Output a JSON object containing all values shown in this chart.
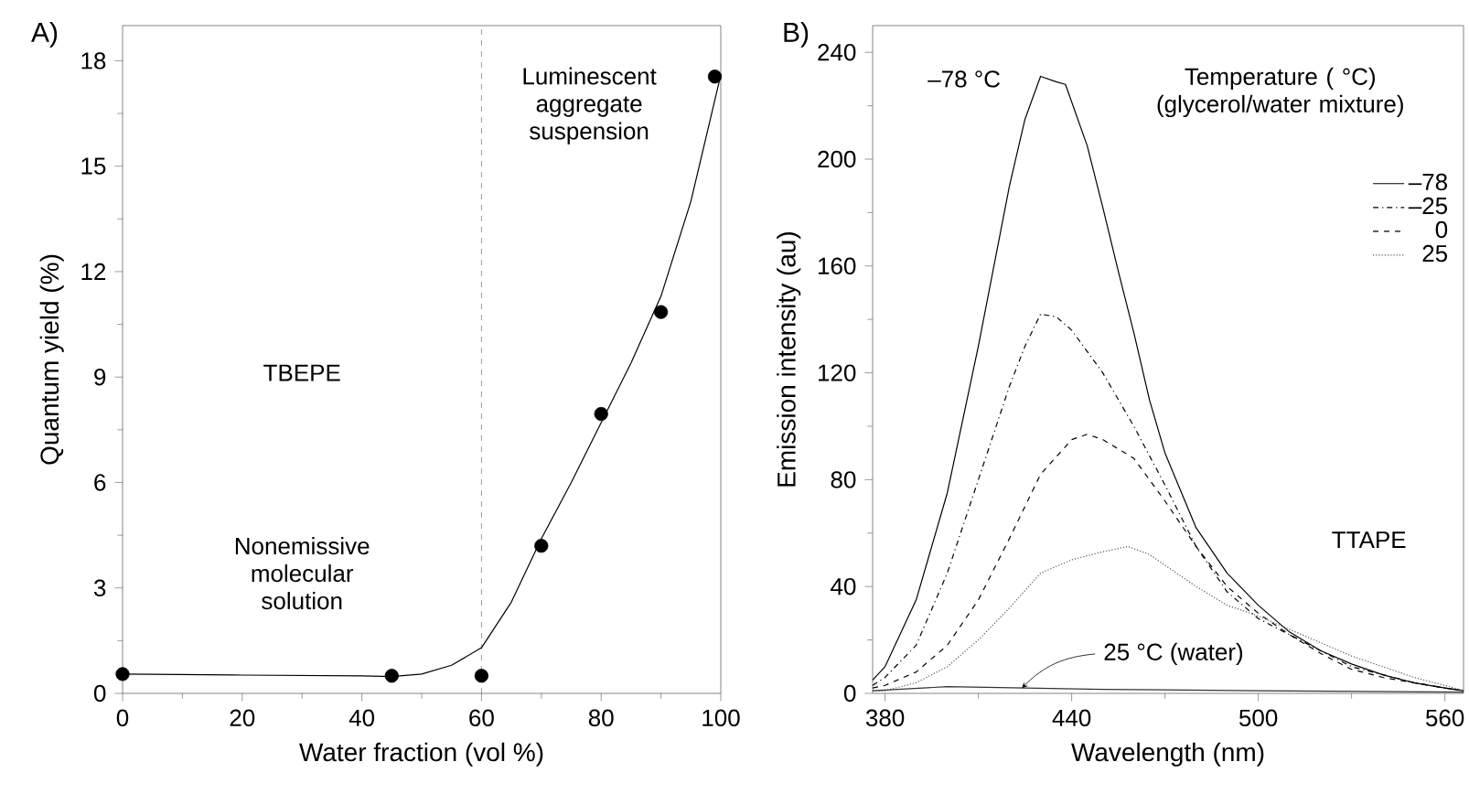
{
  "chart_data": [
    {
      "type": "scatter",
      "title": "A)",
      "xlabel": "Water fraction (vol %)",
      "ylabel": "Quantum yield (%)",
      "xlim": [
        0,
        100
      ],
      "ylim": [
        0,
        19
      ],
      "xticks": [
        0,
        20,
        40,
        60,
        80,
        100
      ],
      "yticks": [
        0,
        3,
        6,
        9,
        12,
        15,
        18
      ],
      "series": [
        {
          "type": "scatter",
          "marker": "circle",
          "color": "#000000",
          "x": [
            0,
            45,
            60,
            70,
            80,
            90,
            99
          ],
          "values": [
            0.55,
            0.5,
            0.5,
            4.2,
            7.95,
            10.85,
            17.55
          ]
        },
        {
          "type": "line",
          "marker": "none",
          "color": "#000000",
          "x": [
            0,
            20,
            40,
            45,
            50,
            55,
            60,
            65,
            70,
            75,
            80,
            85,
            90,
            95,
            100
          ],
          "values": [
            0.55,
            0.52,
            0.5,
            0.48,
            0.55,
            0.8,
            1.3,
            2.6,
            4.4,
            6.0,
            7.7,
            9.4,
            11.3,
            14.0,
            17.6
          ]
        }
      ],
      "ref_lines": [
        {
          "axis": "x",
          "value": 60,
          "line_style": "dashed",
          "color": "#808080"
        }
      ],
      "annotations": [
        "TBEPE",
        "Nonemissive molecular solution",
        "Luminescent aggregate suspension"
      ]
    },
    {
      "type": "line",
      "title": "B)",
      "xlabel": "Wavelength (nm)",
      "ylabel": "Emission intensity (au)",
      "xlim": [
        376,
        566
      ],
      "ylim": [
        0,
        250
      ],
      "xticks": [
        380,
        440,
        500,
        560
      ],
      "yticks": [
        0,
        40,
        80,
        120,
        160,
        200,
        240
      ],
      "legend": "top right",
      "legend_title": "Temperature ( °C) (glycerol/water mixture)",
      "series": [
        {
          "name": "–78",
          "color": "#000000",
          "line_style": "solid",
          "x": [
            376,
            380,
            390,
            400,
            410,
            420,
            425,
            430,
            435,
            438,
            445,
            450,
            455,
            460,
            465,
            470,
            480,
            490,
            500,
            510,
            520,
            530,
            540,
            550,
            560,
            566
          ],
          "values": [
            5,
            10,
            35,
            75,
            130,
            190,
            215,
            231,
            229,
            228,
            205,
            182,
            158,
            135,
            110,
            90,
            62,
            45,
            33,
            23,
            16,
            11,
            7,
            4,
            2,
            1
          ]
        },
        {
          "name": "–25",
          "color": "#000000",
          "line_style": "dashdot",
          "x": [
            376,
            380,
            390,
            400,
            410,
            420,
            425,
            430,
            435,
            440,
            450,
            460,
            470,
            480,
            490,
            500,
            510,
            520,
            530,
            540,
            550,
            560,
            566
          ],
          "values": [
            3,
            6,
            18,
            45,
            80,
            115,
            130,
            142,
            141,
            136,
            120,
            100,
            78,
            55,
            38,
            28,
            22,
            16,
            10,
            7,
            4,
            2,
            1
          ]
        },
        {
          "name": "0",
          "color": "#000000",
          "line_style": "dashed",
          "x": [
            376,
            380,
            390,
            400,
            410,
            420,
            430,
            440,
            445,
            450,
            460,
            470,
            480,
            490,
            500,
            510,
            520,
            530,
            540,
            550,
            560,
            566
          ],
          "values": [
            2,
            3,
            8,
            18,
            35,
            58,
            82,
            95,
            97,
            95,
            88,
            72,
            55,
            40,
            30,
            22,
            15,
            9,
            6,
            4,
            2,
            1
          ]
        },
        {
          "name": "25",
          "color": "#555555",
          "line_style": "dotted",
          "x": [
            376,
            380,
            390,
            400,
            410,
            420,
            430,
            440,
            450,
            458,
            465,
            470,
            480,
            490,
            500,
            510,
            520,
            530,
            540,
            550,
            560,
            566
          ],
          "values": [
            1,
            1,
            4,
            10,
            20,
            32,
            45,
            50,
            53,
            55,
            52,
            48,
            40,
            33,
            29,
            24,
            19,
            14,
            10,
            6,
            3,
            1
          ]
        },
        {
          "color": "#333333",
          "line_style": "solid",
          "x": [
            376,
            400,
            450,
            500,
            566
          ],
          "values": [
            1,
            2.5,
            1.5,
            1,
            0.5
          ]
        }
      ],
      "annotations": [
        "–78 °C",
        "TTAPE",
        {
          "text": "25 °C (water)",
          "x": 424,
          "y": 2
        }
      ]
    }
  ]
}
